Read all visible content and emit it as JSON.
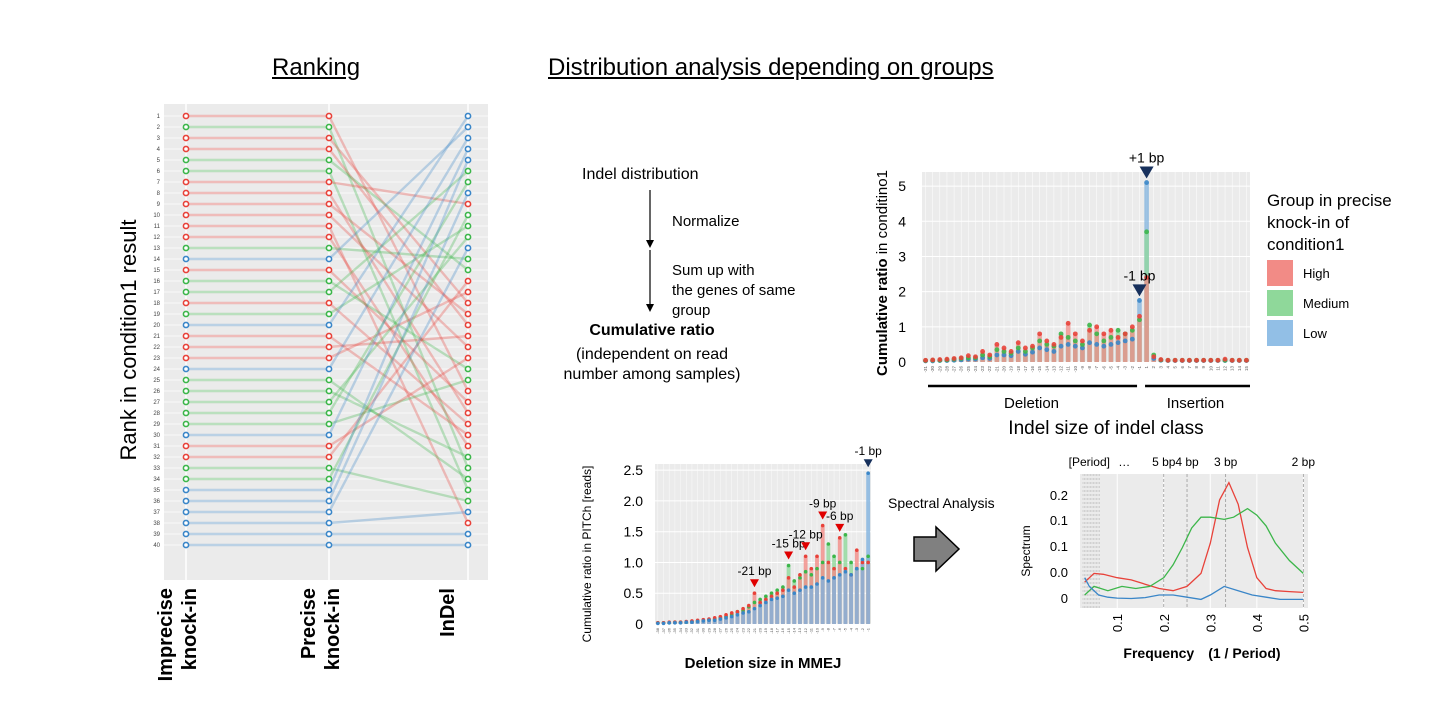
{
  "titles": {
    "ranking": "Ranking",
    "distribution": "Distribution analysis depending on groups"
  },
  "colors": {
    "high": "#e8423a",
    "medium": "#3cb64a",
    "low": "#3a86c8",
    "navy": "#17305c"
  },
  "ranking_chart": {
    "type": "slope",
    "ylabel": "Rank in condition1 result",
    "columns": [
      "Imprecise knock-in",
      "Precise knock-in",
      "InDel"
    ],
    "column_lines": [
      [
        "Imprecise",
        "knock-in"
      ],
      [
        "Precise",
        "knock-in"
      ],
      [
        "InDel"
      ]
    ],
    "rank_labels": [
      "1",
      "2",
      "3",
      "4",
      "5",
      "6",
      "7",
      "8",
      "9",
      "10",
      "11",
      "12",
      "13",
      "14",
      "15",
      "16",
      "17",
      "18",
      "19",
      "20",
      "21",
      "22",
      "23",
      "24",
      "25",
      "26",
      "27",
      "28",
      "29",
      "30",
      "31",
      "32",
      "33",
      "34",
      "35",
      "36",
      "37",
      "38",
      "39",
      "40"
    ],
    "imprecise_groups": [
      "H",
      "M",
      "H",
      "H",
      "M",
      "M",
      "H",
      "H",
      "H",
      "H",
      "H",
      "H",
      "M",
      "B",
      "H",
      "M",
      "M",
      "H",
      "M",
      "B",
      "H",
      "H",
      "H",
      "B",
      "M",
      "M",
      "M",
      "M",
      "M",
      "B",
      "H",
      "H",
      "M",
      "M",
      "B",
      "B",
      "B",
      "B",
      "B",
      "B"
    ],
    "lines": [
      [
        1,
        1,
        26,
        "H"
      ],
      [
        2,
        2,
        33,
        "M"
      ],
      [
        3,
        3,
        18,
        "H"
      ],
      [
        4,
        4,
        20,
        "H"
      ],
      [
        5,
        5,
        15,
        "M"
      ],
      [
        6,
        6,
        35,
        "M"
      ],
      [
        7,
        7,
        9,
        "H"
      ],
      [
        8,
        8,
        28,
        "H"
      ],
      [
        9,
        9,
        19,
        "H"
      ],
      [
        10,
        10,
        22,
        "H"
      ],
      [
        11,
        11,
        38,
        "H"
      ],
      [
        12,
        12,
        31,
        "H"
      ],
      [
        13,
        13,
        14,
        "M"
      ],
      [
        14,
        14,
        2,
        "B"
      ],
      [
        15,
        15,
        27,
        "H"
      ],
      [
        16,
        16,
        24,
        "M"
      ],
      [
        17,
        17,
        6,
        "M"
      ],
      [
        18,
        18,
        29,
        "H"
      ],
      [
        19,
        19,
        11,
        "M"
      ],
      [
        20,
        20,
        1,
        "B"
      ],
      [
        21,
        21,
        30,
        "H"
      ],
      [
        22,
        22,
        21,
        "H"
      ],
      [
        23,
        23,
        17,
        "H"
      ],
      [
        24,
        24,
        3,
        "B"
      ],
      [
        25,
        25,
        34,
        "M"
      ],
      [
        26,
        26,
        32,
        "M"
      ],
      [
        27,
        27,
        12,
        "M"
      ],
      [
        28,
        28,
        7,
        "M"
      ],
      [
        29,
        29,
        25,
        "M"
      ],
      [
        30,
        30,
        4,
        "B"
      ],
      [
        31,
        31,
        23,
        "H"
      ],
      [
        32,
        32,
        16,
        "H"
      ],
      [
        33,
        33,
        36,
        "M"
      ],
      [
        34,
        34,
        10,
        "M"
      ],
      [
        35,
        35,
        5,
        "B"
      ],
      [
        36,
        36,
        8,
        "B"
      ],
      [
        37,
        37,
        13,
        "B"
      ],
      [
        38,
        38,
        37,
        "B"
      ],
      [
        39,
        39,
        39,
        "B"
      ],
      [
        40,
        40,
        40,
        "B"
      ]
    ]
  },
  "workflow": {
    "step1": "Indel distribution",
    "step2": "Normalize",
    "step3_lines": [
      "Sum up with",
      "the genes of same",
      "group"
    ],
    "result": "Cumulative ratio",
    "result_sub_lines": [
      "(independent on read",
      "number among samples)"
    ]
  },
  "indel_chart": {
    "type": "bar",
    "ylabel_bold": "Cumulative ratio",
    "ylabel_rest": " in conditino1",
    "xlabel": "Indel size of indel class",
    "yticks": [
      "0",
      "1",
      "2",
      "3",
      "4",
      "5"
    ],
    "ylim": [
      0,
      5.4
    ],
    "deletion_label": "Deletion",
    "insertion_label": "Insertion",
    "annotations": [
      {
        "text": "+1 bp",
        "size": 1
      },
      {
        "text": "-1 bp",
        "size": -1
      }
    ],
    "categories": [
      -31,
      -30,
      -29,
      -28,
      -27,
      -26,
      -25,
      -24,
      -23,
      -22,
      -21,
      -20,
      -19,
      -18,
      -17,
      -16,
      -15,
      -14,
      -13,
      -12,
      -11,
      -10,
      -9,
      -8,
      -7,
      -6,
      -5,
      -4,
      -3,
      -2,
      -1,
      1,
      2,
      3,
      4,
      5,
      6,
      7,
      8,
      9,
      10,
      11,
      12,
      13,
      14,
      15
    ],
    "category_labels": [
      "-31",
      "-30",
      "-29",
      "-28",
      "-27",
      "-26",
      "-25",
      "-24",
      "-23",
      "-22",
      "-21",
      "-20",
      "-19",
      "-18",
      "-17",
      "-16",
      "-15",
      "-14",
      "-13",
      "-12",
      "-11",
      "-10",
      "-9",
      "-8",
      "-7",
      "-6",
      "-5",
      "-4",
      "-3",
      "-2",
      "-1",
      "1",
      "2",
      "3",
      "4",
      "5",
      "6",
      "7",
      "8",
      "9",
      "10",
      "11",
      "12",
      "13",
      "14",
      "15"
    ],
    "series": [
      {
        "name": "High",
        "values": [
          0.05,
          0.06,
          0.07,
          0.08,
          0.1,
          0.12,
          0.18,
          0.15,
          0.3,
          0.2,
          0.5,
          0.4,
          0.3,
          0.55,
          0.4,
          0.45,
          0.8,
          0.6,
          0.5,
          0.7,
          1.1,
          0.8,
          0.6,
          0.9,
          1.0,
          0.8,
          0.9,
          0.7,
          0.8,
          1.0,
          1.3,
          2.4,
          0.15,
          0.07,
          0.05,
          0.05,
          0.05,
          0.05,
          0.05,
          0.05,
          0.05,
          0.05,
          0.08,
          0.05,
          0.05,
          0.05
        ]
      },
      {
        "name": "Medium",
        "values": [
          0.04,
          0.05,
          0.05,
          0.06,
          0.08,
          0.1,
          0.12,
          0.12,
          0.2,
          0.15,
          0.35,
          0.3,
          0.25,
          0.4,
          0.3,
          0.4,
          0.6,
          0.5,
          0.45,
          0.8,
          0.7,
          0.6,
          0.5,
          1.05,
          0.8,
          0.6,
          0.7,
          0.9,
          0.8,
          0.9,
          1.2,
          3.7,
          0.2,
          0.06,
          0.05,
          0.05,
          0.05,
          0.05,
          0.05,
          0.05,
          0.05,
          0.05,
          0.05,
          0.05,
          0.05,
          0.05
        ]
      },
      {
        "name": "Low",
        "values": [
          0.03,
          0.03,
          0.04,
          0.04,
          0.05,
          0.06,
          0.08,
          0.08,
          0.12,
          0.1,
          0.2,
          0.2,
          0.18,
          0.3,
          0.22,
          0.28,
          0.4,
          0.35,
          0.3,
          0.45,
          0.5,
          0.45,
          0.4,
          0.55,
          0.5,
          0.45,
          0.5,
          0.55,
          0.6,
          0.65,
          1.75,
          5.1,
          0.1,
          0.05,
          0.04,
          0.04,
          0.04,
          0.04,
          0.04,
          0.04,
          0.04,
          0.04,
          0.04,
          0.04,
          0.04,
          0.04
        ]
      }
    ],
    "legend_title_lines": [
      "Group in precise",
      "knock-in of",
      "condition1"
    ],
    "legend": [
      "High",
      "Medium",
      "Low"
    ]
  },
  "mmej_chart": {
    "type": "bar",
    "ylabel": "Cumulative ratio in PITCh [reads]",
    "xlabel": "Deletion size in MMEJ",
    "yticks": [
      "0",
      "0.5",
      "1.0",
      "1.5",
      "2.0",
      "2.5"
    ],
    "ylim": [
      0,
      2.6
    ],
    "categories": [
      -38,
      -37,
      -36,
      -35,
      -34,
      -33,
      -32,
      -31,
      -30,
      -29,
      -28,
      -27,
      -26,
      -25,
      -24,
      -23,
      -22,
      -21,
      -20,
      -19,
      -18,
      -17,
      -16,
      -15,
      -14,
      -13,
      -12,
      -11,
      -10,
      -9,
      -8,
      -7,
      -6,
      -5,
      -4,
      -3,
      -2,
      -1
    ],
    "category_labels": [
      "-38",
      "-37",
      "-36",
      "-35",
      "-34",
      "-33",
      "-32",
      "-31",
      "-30",
      "-29",
      "-28",
      "-27",
      "-26",
      "-25",
      "-24",
      "-23",
      "-22",
      "-21",
      "-20",
      "-19",
      "-18",
      "-17",
      "-16",
      "-15",
      "-14",
      "-13",
      "-12",
      "-11",
      "-10",
      "-9",
      "-8",
      "-7",
      "-6",
      "-5",
      "-4",
      "-3",
      "-2",
      "-1"
    ],
    "annotations": [
      {
        "text": "-21 bp",
        "size": -21
      },
      {
        "text": "-15 bp",
        "size": -15
      },
      {
        "text": "-12 bp",
        "size": -12
      },
      {
        "text": "-9 bp",
        "size": -9
      },
      {
        "text": "-6 bp",
        "size": -6
      },
      {
        "text": "-1 bp",
        "size": -1
      }
    ],
    "series": [
      {
        "name": "High",
        "values": [
          0.02,
          0.02,
          0.03,
          0.03,
          0.03,
          0.04,
          0.05,
          0.06,
          0.07,
          0.08,
          0.1,
          0.12,
          0.15,
          0.18,
          0.2,
          0.25,
          0.3,
          0.5,
          0.35,
          0.4,
          0.45,
          0.5,
          0.55,
          0.75,
          0.6,
          0.8,
          1.1,
          0.9,
          1.1,
          1.6,
          1.0,
          0.9,
          1.4,
          0.9,
          0.8,
          1.2,
          1.0,
          1.0
        ]
      },
      {
        "name": "Medium",
        "values": [
          0.02,
          0.02,
          0.02,
          0.03,
          0.03,
          0.03,
          0.04,
          0.05,
          0.06,
          0.07,
          0.08,
          0.1,
          0.12,
          0.15,
          0.2,
          0.22,
          0.28,
          0.35,
          0.4,
          0.45,
          0.5,
          0.55,
          0.6,
          0.95,
          0.7,
          0.75,
          0.85,
          0.8,
          0.9,
          1.0,
          1.3,
          1.1,
          1.0,
          1.45,
          1.0,
          0.9,
          0.9,
          1.1
        ]
      },
      {
        "name": "Low",
        "values": [
          0.01,
          0.01,
          0.02,
          0.02,
          0.02,
          0.03,
          0.03,
          0.04,
          0.05,
          0.06,
          0.06,
          0.08,
          0.1,
          0.12,
          0.15,
          0.18,
          0.2,
          0.25,
          0.3,
          0.35,
          0.4,
          0.42,
          0.45,
          0.55,
          0.5,
          0.55,
          0.6,
          0.6,
          0.65,
          0.75,
          0.7,
          0.75,
          0.8,
          0.85,
          0.8,
          0.9,
          1.05,
          2.45
        ]
      }
    ]
  },
  "spectral_arrow_label": "Spectral Analysis",
  "spectrum_chart": {
    "type": "line",
    "ylabel": "Spectrum",
    "xlabel": "Frequency　(1 / Period)",
    "yticks": [
      "0",
      "0.0",
      "0.1",
      "0.1",
      "0.2"
    ],
    "xticks": [
      0.1,
      0.2,
      0.3,
      0.4,
      0.5
    ],
    "xtick_labels": [
      "0.1",
      "0.2",
      "0.3",
      "0.4",
      "0.5"
    ],
    "xlim": [
      0.02,
      0.51
    ],
    "ylim": [
      -0.02,
      0.29
    ],
    "period_labels": [
      {
        "text": "[Period]",
        "freq": 0.04
      },
      {
        "text": "…",
        "freq": 0.115
      },
      {
        "text": "5 bp",
        "freq": 0.2
      },
      {
        "text": "4 bp",
        "freq": 0.25
      },
      {
        "text": "3 bp",
        "freq": 0.333
      },
      {
        "text": "2 bp",
        "freq": 0.5
      }
    ],
    "series": [
      {
        "name": "High",
        "x": [
          0.03,
          0.05,
          0.07,
          0.1,
          0.13,
          0.16,
          0.19,
          0.22,
          0.25,
          0.28,
          0.3,
          0.32,
          0.34,
          0.36,
          0.38,
          0.4,
          0.42,
          0.44,
          0.47,
          0.5
        ],
        "y": [
          0.04,
          0.06,
          0.058,
          0.05,
          0.045,
          0.035,
          0.025,
          0.02,
          0.03,
          0.06,
          0.13,
          0.23,
          0.27,
          0.22,
          0.12,
          0.05,
          0.025,
          0.02,
          0.018,
          0.016
        ]
      },
      {
        "name": "Medium",
        "x": [
          0.03,
          0.05,
          0.08,
          0.11,
          0.14,
          0.17,
          0.2,
          0.22,
          0.24,
          0.26,
          0.28,
          0.3,
          0.33,
          0.35,
          0.38,
          0.4,
          0.42,
          0.44,
          0.47,
          0.5
        ],
        "y": [
          0.01,
          0.03,
          0.02,
          0.03,
          0.025,
          0.03,
          0.05,
          0.08,
          0.12,
          0.165,
          0.19,
          0.19,
          0.185,
          0.19,
          0.21,
          0.195,
          0.17,
          0.13,
          0.09,
          0.06
        ]
      },
      {
        "name": "Low",
        "x": [
          0.03,
          0.04,
          0.06,
          0.08,
          0.1,
          0.13,
          0.16,
          0.19,
          0.22,
          0.25,
          0.28,
          0.3,
          0.33,
          0.36,
          0.39,
          0.42,
          0.45,
          0.48,
          0.5
        ],
        "y": [
          0.05,
          0.03,
          0.01,
          0.005,
          0.003,
          0.002,
          0.004,
          0.01,
          0.01,
          0.005,
          0.0,
          0.01,
          0.03,
          0.02,
          0.01,
          0.005,
          0.0,
          0.0,
          0.0
        ]
      }
    ]
  }
}
